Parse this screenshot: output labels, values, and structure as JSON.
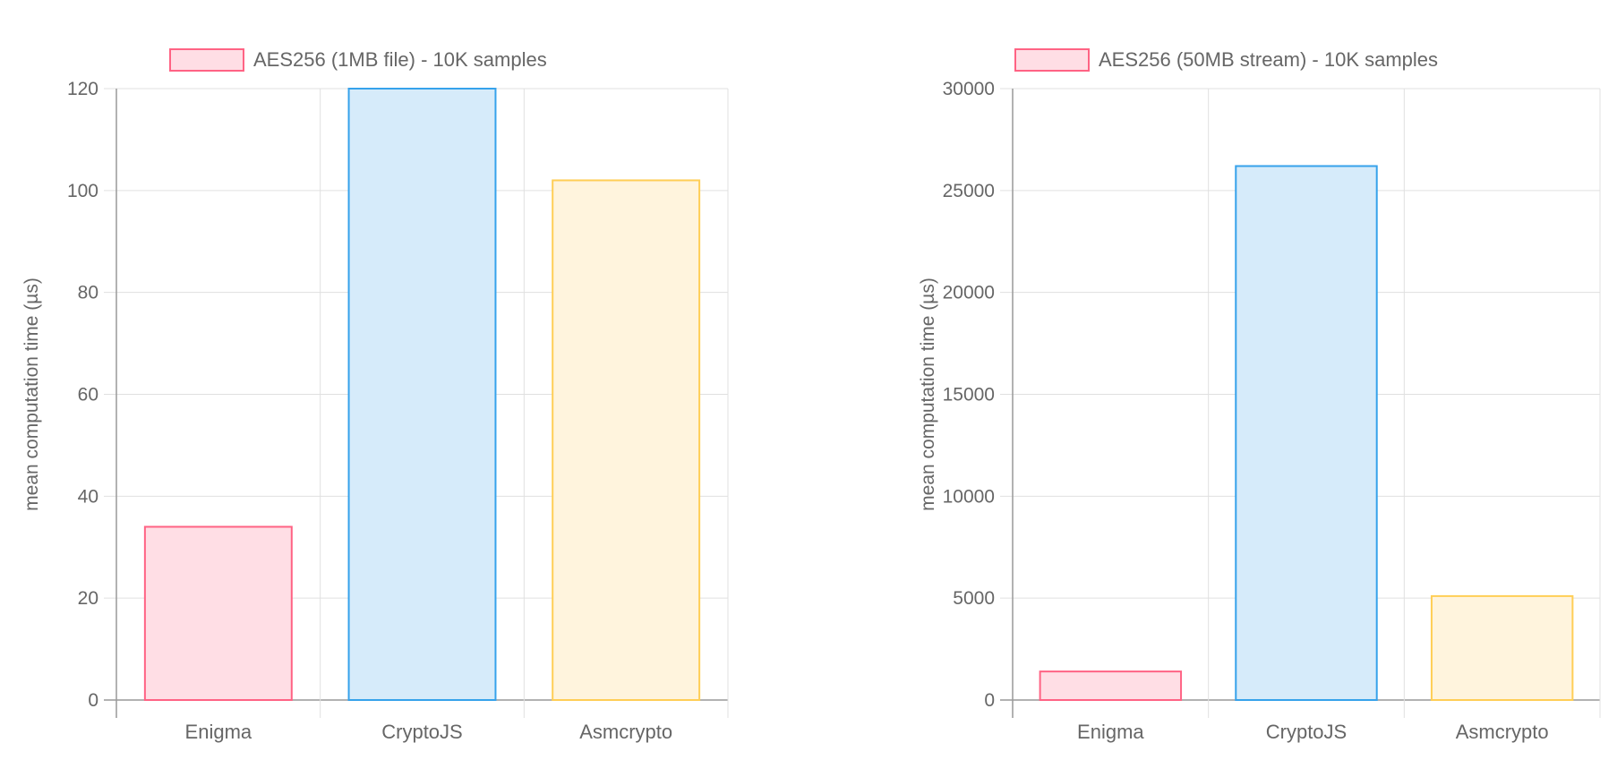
{
  "chart_data": [
    {
      "type": "bar",
      "legend": "AES256 (1MB file) - 10K samples",
      "legend_placement": "top",
      "categories": [
        "Enigma",
        "CryptoJS",
        "Asmcrypto"
      ],
      "values": [
        34,
        120,
        102
      ],
      "ylabel": "mean computation time (µs)",
      "xlabel": "",
      "ylim": [
        0,
        120
      ],
      "yticks": [
        0,
        20,
        40,
        60,
        80,
        100,
        120
      ],
      "grid": true,
      "bar_colors": [
        {
          "fill": "#ffdee5",
          "stroke": "#ff6384"
        },
        {
          "fill": "#d6ebfa",
          "stroke": "#36a2eb"
        },
        {
          "fill": "#fff4dd",
          "stroke": "#ffce56"
        }
      ]
    },
    {
      "type": "bar",
      "legend": "AES256 (50MB stream) - 10K samples",
      "legend_placement": "top",
      "categories": [
        "Enigma",
        "CryptoJS",
        "Asmcrypto"
      ],
      "values": [
        1400,
        26200,
        5100
      ],
      "ylabel": "mean computation time (µs)",
      "xlabel": "",
      "ylim": [
        0,
        30000
      ],
      "yticks": [
        0,
        5000,
        10000,
        15000,
        20000,
        25000,
        30000
      ],
      "grid": true,
      "bar_colors": [
        {
          "fill": "#ffdee5",
          "stroke": "#ff6384"
        },
        {
          "fill": "#d6ebfa",
          "stroke": "#36a2eb"
        },
        {
          "fill": "#fff4dd",
          "stroke": "#ffce56"
        }
      ]
    }
  ]
}
